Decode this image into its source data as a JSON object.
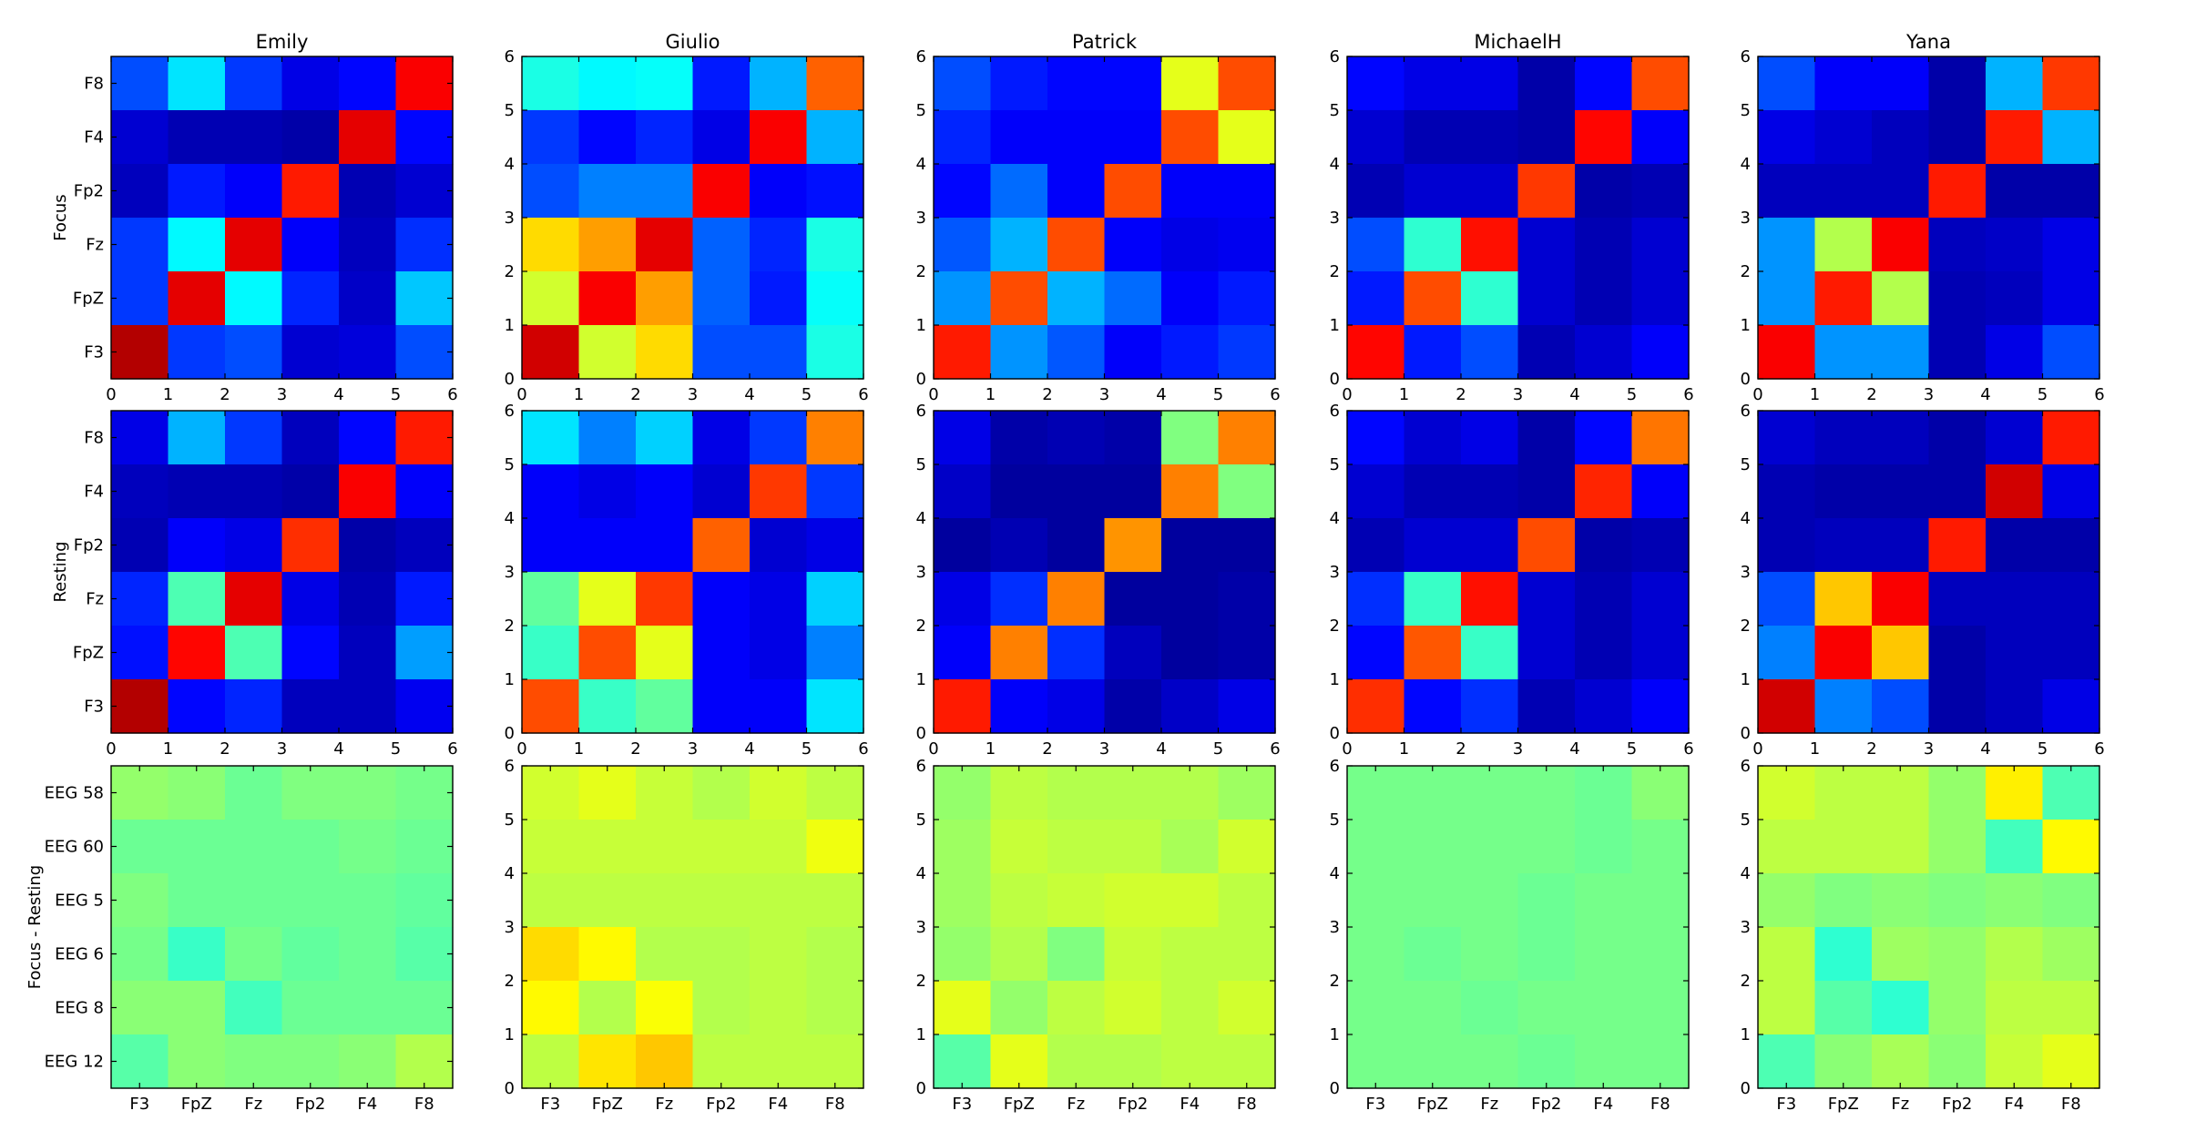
{
  "chart_data": {
    "type": "heatmap",
    "colormap": "jet",
    "value_range": [
      0,
      1
    ],
    "columns": [
      "Emily",
      "Giulio",
      "Patrick",
      "MichaelH",
      "Yana"
    ],
    "row_labels": [
      "Focus",
      "Resting",
      "Focus - Resting"
    ],
    "x_range": [
      0,
      6
    ],
    "y_range": [
      0,
      6
    ],
    "numeric_ticks": [
      "0",
      "1",
      "2",
      "3",
      "4",
      "5",
      "6"
    ],
    "channel_labels_y": [
      "F8",
      "F4",
      "Fp2",
      "Fz",
      "FpZ",
      "F3"
    ],
    "eeg_labels_y": [
      "EEG 58",
      "EEG 60",
      "EEG 5",
      "EEG 6",
      "EEG 8",
      "EEG 12"
    ],
    "channel_labels_x": [
      "F3",
      "FpZ",
      "Fz",
      "Fp2",
      "F4",
      "F8"
    ],
    "matrices": [
      [
        [
          [
            0.2,
            0.35,
            0.18,
            0.1,
            0.13,
            0.88
          ],
          [
            0.08,
            0.05,
            0.05,
            0.04,
            0.9,
            0.13
          ],
          [
            0.06,
            0.15,
            0.12,
            0.85,
            0.05,
            0.08
          ],
          [
            0.18,
            0.37,
            0.9,
            0.12,
            0.06,
            0.17
          ],
          [
            0.18,
            0.9,
            0.37,
            0.16,
            0.07,
            0.32
          ],
          [
            0.95,
            0.18,
            0.2,
            0.08,
            0.09,
            0.2
          ]
        ],
        [
          [
            0.1,
            0.3,
            0.18,
            0.06,
            0.13,
            0.85
          ],
          [
            0.06,
            0.05,
            0.05,
            0.04,
            0.88,
            0.12
          ],
          [
            0.05,
            0.12,
            0.1,
            0.83,
            0.04,
            0.06
          ],
          [
            0.16,
            0.45,
            0.9,
            0.1,
            0.05,
            0.15
          ],
          [
            0.14,
            0.87,
            0.45,
            0.13,
            0.06,
            0.28
          ],
          [
            0.95,
            0.13,
            0.16,
            0.06,
            0.06,
            0.11
          ]
        ],
        [
          [
            0.52,
            0.51,
            0.48,
            0.5,
            0.5,
            0.49
          ],
          [
            0.48,
            0.48,
            0.48,
            0.48,
            0.49,
            0.48
          ],
          [
            0.5,
            0.48,
            0.48,
            0.48,
            0.48,
            0.47
          ],
          [
            0.49,
            0.43,
            0.49,
            0.47,
            0.48,
            0.46
          ],
          [
            0.51,
            0.51,
            0.44,
            0.48,
            0.48,
            0.48
          ],
          [
            0.46,
            0.51,
            0.5,
            0.5,
            0.51,
            0.55
          ]
        ]
      ],
      [
        [
          [
            0.4,
            0.37,
            0.38,
            0.15,
            0.3,
            0.78
          ],
          [
            0.18,
            0.13,
            0.16,
            0.1,
            0.88,
            0.3
          ],
          [
            0.2,
            0.25,
            0.25,
            0.88,
            0.12,
            0.14
          ],
          [
            0.66,
            0.72,
            0.9,
            0.22,
            0.16,
            0.4
          ],
          [
            0.58,
            0.88,
            0.72,
            0.22,
            0.15,
            0.38
          ],
          [
            0.92,
            0.58,
            0.66,
            0.2,
            0.2,
            0.4
          ]
        ],
        [
          [
            0.35,
            0.25,
            0.33,
            0.1,
            0.18,
            0.75
          ],
          [
            0.12,
            0.1,
            0.12,
            0.08,
            0.82,
            0.18
          ],
          [
            0.12,
            0.12,
            0.12,
            0.78,
            0.08,
            0.1
          ],
          [
            0.47,
            0.6,
            0.82,
            0.12,
            0.1,
            0.33
          ],
          [
            0.43,
            0.8,
            0.6,
            0.12,
            0.1,
            0.25
          ],
          [
            0.8,
            0.43,
            0.47,
            0.12,
            0.12,
            0.35
          ]
        ],
        [
          [
            0.58,
            0.6,
            0.57,
            0.55,
            0.58,
            0.56
          ],
          [
            0.57,
            0.57,
            0.57,
            0.57,
            0.57,
            0.61
          ],
          [
            0.56,
            0.56,
            0.56,
            0.56,
            0.56,
            0.56
          ],
          [
            0.66,
            0.63,
            0.55,
            0.55,
            0.56,
            0.55
          ],
          [
            0.63,
            0.55,
            0.62,
            0.55,
            0.56,
            0.55
          ],
          [
            0.56,
            0.65,
            0.68,
            0.56,
            0.56,
            0.56
          ]
        ]
      ],
      [
        [
          [
            0.2,
            0.15,
            0.13,
            0.13,
            0.6,
            0.8
          ],
          [
            0.16,
            0.12,
            0.12,
            0.12,
            0.8,
            0.6
          ],
          [
            0.13,
            0.23,
            0.12,
            0.8,
            0.12,
            0.12
          ],
          [
            0.21,
            0.3,
            0.8,
            0.12,
            0.1,
            0.11
          ],
          [
            0.27,
            0.8,
            0.3,
            0.23,
            0.12,
            0.15
          ],
          [
            0.85,
            0.27,
            0.21,
            0.12,
            0.15,
            0.18
          ]
        ],
        [
          [
            0.1,
            0.04,
            0.05,
            0.04,
            0.5,
            0.75
          ],
          [
            0.07,
            0.03,
            0.03,
            0.03,
            0.75,
            0.5
          ],
          [
            0.03,
            0.05,
            0.03,
            0.73,
            0.03,
            0.03
          ],
          [
            0.1,
            0.17,
            0.75,
            0.03,
            0.03,
            0.04
          ],
          [
            0.12,
            0.75,
            0.17,
            0.06,
            0.03,
            0.04
          ],
          [
            0.85,
            0.12,
            0.1,
            0.04,
            0.07,
            0.1
          ]
        ],
        [
          [
            0.52,
            0.56,
            0.55,
            0.55,
            0.55,
            0.53
          ],
          [
            0.53,
            0.57,
            0.56,
            0.56,
            0.54,
            0.58
          ],
          [
            0.53,
            0.56,
            0.57,
            0.58,
            0.58,
            0.56
          ],
          [
            0.52,
            0.55,
            0.5,
            0.57,
            0.56,
            0.56
          ],
          [
            0.6,
            0.52,
            0.56,
            0.58,
            0.56,
            0.58
          ],
          [
            0.46,
            0.6,
            0.55,
            0.55,
            0.56,
            0.56
          ]
        ]
      ],
      [
        [
          [
            0.13,
            0.1,
            0.1,
            0.04,
            0.13,
            0.8
          ],
          [
            0.08,
            0.05,
            0.05,
            0.04,
            0.87,
            0.12
          ],
          [
            0.05,
            0.08,
            0.08,
            0.82,
            0.04,
            0.05
          ],
          [
            0.2,
            0.42,
            0.86,
            0.08,
            0.05,
            0.08
          ],
          [
            0.15,
            0.8,
            0.42,
            0.08,
            0.05,
            0.08
          ],
          [
            0.87,
            0.15,
            0.2,
            0.05,
            0.08,
            0.12
          ]
        ],
        [
          [
            0.13,
            0.08,
            0.1,
            0.04,
            0.13,
            0.76
          ],
          [
            0.08,
            0.05,
            0.05,
            0.04,
            0.84,
            0.12
          ],
          [
            0.05,
            0.08,
            0.08,
            0.8,
            0.04,
            0.05
          ],
          [
            0.17,
            0.43,
            0.86,
            0.08,
            0.05,
            0.08
          ],
          [
            0.13,
            0.79,
            0.43,
            0.08,
            0.05,
            0.08
          ],
          [
            0.83,
            0.13,
            0.17,
            0.05,
            0.08,
            0.12
          ]
        ],
        [
          [
            0.49,
            0.49,
            0.49,
            0.49,
            0.48,
            0.51
          ],
          [
            0.49,
            0.49,
            0.49,
            0.49,
            0.48,
            0.49
          ],
          [
            0.49,
            0.49,
            0.49,
            0.48,
            0.49,
            0.49
          ],
          [
            0.49,
            0.48,
            0.49,
            0.48,
            0.49,
            0.49
          ],
          [
            0.49,
            0.49,
            0.48,
            0.49,
            0.49,
            0.49
          ],
          [
            0.49,
            0.49,
            0.49,
            0.48,
            0.49,
            0.49
          ]
        ]
      ],
      [
        [
          [
            0.2,
            0.12,
            0.12,
            0.04,
            0.3,
            0.82
          ],
          [
            0.1,
            0.08,
            0.06,
            0.04,
            0.85,
            0.3
          ],
          [
            0.06,
            0.06,
            0.06,
            0.85,
            0.04,
            0.04
          ],
          [
            0.27,
            0.55,
            0.88,
            0.06,
            0.07,
            0.1
          ],
          [
            0.27,
            0.85,
            0.55,
            0.05,
            0.06,
            0.1
          ],
          [
            0.88,
            0.27,
            0.27,
            0.05,
            0.1,
            0.2
          ]
        ],
        [
          [
            0.08,
            0.06,
            0.06,
            0.04,
            0.08,
            0.85
          ],
          [
            0.05,
            0.04,
            0.04,
            0.04,
            0.92,
            0.1
          ],
          [
            0.05,
            0.06,
            0.06,
            0.85,
            0.04,
            0.04
          ],
          [
            0.2,
            0.68,
            0.88,
            0.06,
            0.06,
            0.06
          ],
          [
            0.25,
            0.88,
            0.68,
            0.04,
            0.06,
            0.06
          ],
          [
            0.92,
            0.25,
            0.2,
            0.04,
            0.06,
            0.1
          ]
        ],
        [
          [
            0.58,
            0.56,
            0.56,
            0.52,
            0.64,
            0.45
          ],
          [
            0.56,
            0.56,
            0.56,
            0.52,
            0.44,
            0.63
          ],
          [
            0.52,
            0.5,
            0.51,
            0.5,
            0.51,
            0.5
          ],
          [
            0.56,
            0.42,
            0.53,
            0.52,
            0.55,
            0.53
          ],
          [
            0.56,
            0.46,
            0.42,
            0.52,
            0.56,
            0.56
          ],
          [
            0.45,
            0.51,
            0.54,
            0.51,
            0.57,
            0.6
          ]
        ]
      ]
    ]
  }
}
